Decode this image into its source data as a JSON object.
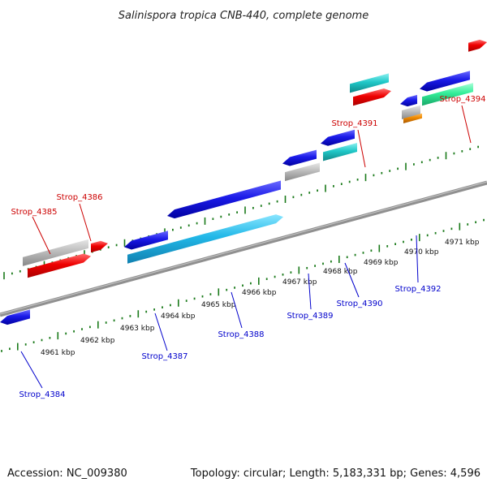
{
  "title": "Salinispora tropica CNB-440, complete genome",
  "footer": {
    "accession": "Accession: NC_009380",
    "summary": "Topology: circular; Length: 5,183,331 bp; Genes: 4,596"
  },
  "kbp_labels": [
    "4961 kbp",
    "4962 kbp",
    "4963 kbp",
    "4964 kbp",
    "4965 kbp",
    "4966 kbp",
    "4967 kbp",
    "4968 kbp",
    "4969 kbp",
    "4970 kbp",
    "4971 kbp"
  ],
  "gene_labels": {
    "strop_4384": "Strop_4384",
    "strop_4385": "Strop_4385",
    "strop_4386": "Strop_4386",
    "strop_4387": "Strop_4387",
    "strop_4388": "Strop_4388",
    "strop_4389": "Strop_4389",
    "strop_4390": "Strop_4390",
    "strop_4391": "Strop_4391",
    "strop_4392": "Strop_4392",
    "strop_4394": "Strop_4394"
  },
  "colors": {
    "forward_cds": "#dd0000",
    "reverse_cds": "#1010e0",
    "cyan": "#22b8e8",
    "teal": "#20c8c8",
    "gray": "#b8b8b8",
    "green": "#33ee99",
    "orange": "#ee8800",
    "backbone": "#808080",
    "ticks": "#1a7a1a",
    "forward_label": "#cc0000",
    "reverse_label": "#0000cc"
  }
}
